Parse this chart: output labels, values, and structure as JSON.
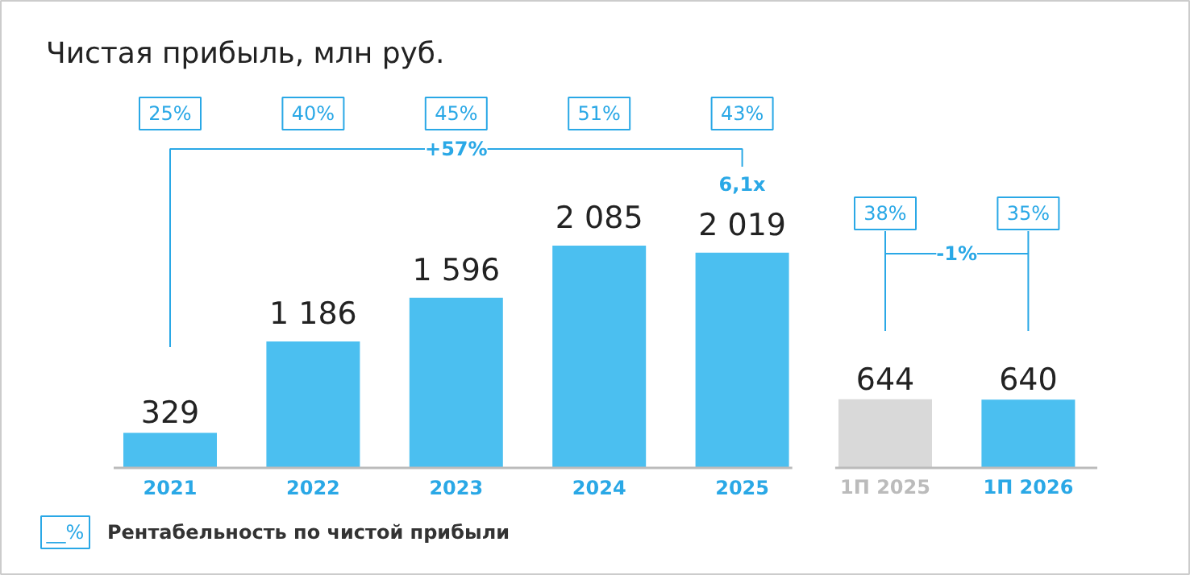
{
  "chart_data": {
    "type": "bar",
    "title": "Чистая прибыль, млн руб.",
    "categories": [
      "2021",
      "2022",
      "2023",
      "2024",
      "2025",
      "1П 2025",
      "1П 2026"
    ],
    "values": [
      329,
      1186,
      1596,
      2085,
      2019,
      644,
      640
    ],
    "value_labels": [
      "329",
      "1 186",
      "1 596",
      "2 085",
      "2 019",
      "644",
      "640"
    ],
    "colors": [
      "#4bbff0",
      "#4bbff0",
      "#4bbff0",
      "#4bbff0",
      "#4bbff0",
      "#d9d9d9",
      "#4bbff0"
    ],
    "annotations": [
      "25%",
      "40%",
      "45%",
      "51%",
      "43%",
      "38%",
      "35%",
      "+57%",
      "6,1x",
      "-1%",
      "__%",
      "Рентабельность по чистой прибыли"
    ]
  }
}
